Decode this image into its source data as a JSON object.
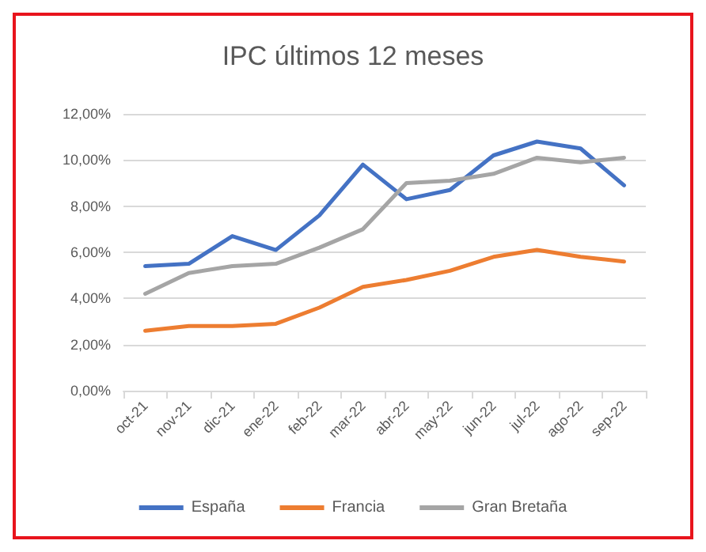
{
  "chart_data": {
    "type": "line",
    "title": "IPC últimos 12 meses",
    "categories": [
      "oct-21",
      "nov-21",
      "dic-21",
      "ene-22",
      "feb-22",
      "mar-22",
      "abr-22",
      "may-22",
      "jun-22",
      "jul-22",
      "ago-22",
      "sep-22"
    ],
    "series": [
      {
        "name": "España",
        "color": "#4472c4",
        "values": [
          5.4,
          5.5,
          6.7,
          6.1,
          7.6,
          9.8,
          8.3,
          8.7,
          10.2,
          10.8,
          10.5,
          8.9
        ]
      },
      {
        "name": "Francia",
        "color": "#ed7d31",
        "values": [
          2.6,
          2.8,
          2.8,
          2.9,
          3.6,
          4.5,
          4.8,
          5.2,
          5.8,
          6.1,
          5.8,
          5.6
        ]
      },
      {
        "name": "Gran Bretaña",
        "color": "#a5a5a5",
        "values": [
          4.2,
          5.1,
          5.4,
          5.5,
          6.2,
          7.0,
          9.0,
          9.1,
          9.4,
          10.1,
          9.9,
          10.1
        ]
      }
    ],
    "ylim": [
      0,
      12
    ],
    "yticks": [
      {
        "value": 0,
        "label": "0,00%"
      },
      {
        "value": 2,
        "label": "2,00%"
      },
      {
        "value": 4,
        "label": "4,00%"
      },
      {
        "value": 6,
        "label": "6,00%"
      },
      {
        "value": 8,
        "label": "8,00%"
      },
      {
        "value": 10,
        "label": "10,00%"
      },
      {
        "value": 12,
        "label": "12,00%"
      }
    ],
    "grid": "y",
    "legend": "bottom",
    "marker": "none",
    "line_style": "solid"
  }
}
